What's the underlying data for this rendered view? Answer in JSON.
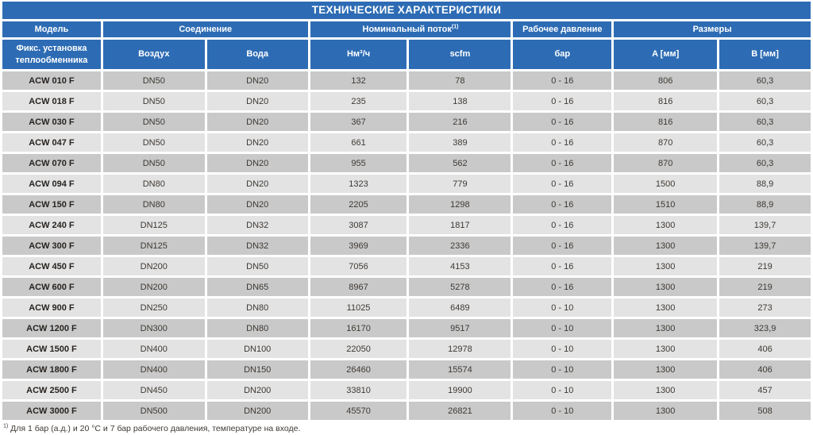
{
  "title": "ТЕХНИЧЕСКИЕ ХАРАКТЕРИСТИКИ",
  "colors": {
    "header_blue": "#2d6cb4",
    "row_dark": "#c9c9c9",
    "row_light": "#e3e3e3",
    "text_dark": "#3e3934"
  },
  "table": {
    "header_groups": [
      {
        "label": "Модель"
      },
      {
        "label": "Соединение"
      },
      {
        "label": "Номинальный поток",
        "sup": "(1)"
      },
      {
        "label": "Рабочее давление"
      },
      {
        "label": "Размеры"
      }
    ],
    "subheaders": [
      "Фикс. установка теплообменника",
      "Воздух",
      "Вода",
      "Нм³/ч",
      "scfm",
      "бар",
      "A [мм]",
      "B [мм]"
    ],
    "rows": [
      [
        "ACW 010 F",
        "DN50",
        "DN20",
        "132",
        "78",
        "0 - 16",
        "806",
        "60,3"
      ],
      [
        "ACW 018 F",
        "DN50",
        "DN20",
        "235",
        "138",
        "0 - 16",
        "816",
        "60,3"
      ],
      [
        "ACW 030 F",
        "DN50",
        "DN20",
        "367",
        "216",
        "0 - 16",
        "816",
        "60,3"
      ],
      [
        "ACW 047 F",
        "DN50",
        "DN20",
        "661",
        "389",
        "0 - 16",
        "870",
        "60,3"
      ],
      [
        "ACW 070 F",
        "DN50",
        "DN20",
        "955",
        "562",
        "0 - 16",
        "870",
        "60,3"
      ],
      [
        "ACW 094 F",
        "DN80",
        "DN20",
        "1323",
        "779",
        "0 - 16",
        "1500",
        "88,9"
      ],
      [
        "ACW 150 F",
        "DN80",
        "DN20",
        "2205",
        "1298",
        "0 - 16",
        "1510",
        "88,9"
      ],
      [
        "ACW 240 F",
        "DN125",
        "DN32",
        "3087",
        "1817",
        "0 - 16",
        "1300",
        "139,7"
      ],
      [
        "ACW 300 F",
        "DN125",
        "DN32",
        "3969",
        "2336",
        "0 - 16",
        "1300",
        "139,7"
      ],
      [
        "ACW 450 F",
        "DN200",
        "DN50",
        "7056",
        "4153",
        "0 - 16",
        "1300",
        "219"
      ],
      [
        "ACW 600 F",
        "DN200",
        "DN65",
        "8967",
        "5278",
        "0 - 16",
        "1300",
        "219"
      ],
      [
        "ACW 900 F",
        "DN250",
        "DN80",
        "11025",
        "6489",
        "0 - 10",
        "1300",
        "273"
      ],
      [
        "ACW 1200 F",
        "DN300",
        "DN80",
        "16170",
        "9517",
        "0 - 10",
        "1300",
        "323,9"
      ],
      [
        "ACW 1500 F",
        "DN400",
        "DN100",
        "22050",
        "12978",
        "0 - 10",
        "1300",
        "406"
      ],
      [
        "ACW 1800 F",
        "DN400",
        "DN150",
        "26460",
        "15574",
        "0 - 10",
        "1300",
        "406"
      ],
      [
        "ACW 2500 F",
        "DN450",
        "DN200",
        "33810",
        "19900",
        "0 - 10",
        "1300",
        "457"
      ],
      [
        "ACW 3000 F",
        "DN500",
        "DN200",
        "45570",
        "26821",
        "0 - 10",
        "1300",
        "508"
      ]
    ]
  },
  "footnote": {
    "sup": "1)",
    "text": " Для 1 бар (а.д.) и 20 °C и 7 бар рабочего давления, температуре на входе."
  }
}
